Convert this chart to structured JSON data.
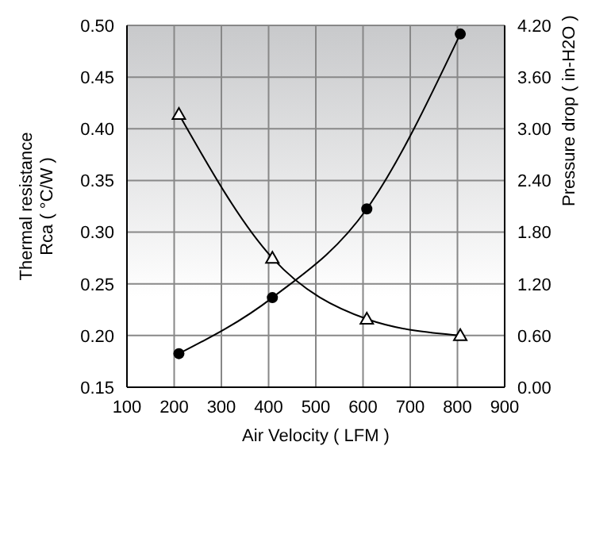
{
  "chart_data": {
    "type": "line",
    "xlabel": "Air Velocity ( LFM )",
    "ylabel": "Thermal resistance\nRca ( °C/W )",
    "y2label": "Pressure drop ( in-H2O )",
    "xlim": [
      100,
      900
    ],
    "xticks": [
      100,
      200,
      300,
      400,
      500,
      600,
      700,
      800,
      900
    ],
    "ylim": [
      0.15,
      0.5
    ],
    "yticks": [
      {
        "value": 0.15,
        "label": "0.15"
      },
      {
        "value": 0.2,
        "label": "0.20"
      },
      {
        "value": 0.25,
        "label": "0.25"
      },
      {
        "value": 0.3,
        "label": "0.30"
      },
      {
        "value": 0.35,
        "label": "0.35"
      },
      {
        "value": 0.4,
        "label": "0.40"
      },
      {
        "value": 0.45,
        "label": "0.45"
      },
      {
        "value": 0.5,
        "label": "0.50"
      }
    ],
    "y2lim": [
      0,
      4.2
    ],
    "y2ticks": [
      {
        "value": 0,
        "label": "0.00"
      },
      {
        "value": 0.6,
        "label": "0.60"
      },
      {
        "value": 1.2,
        "label": "1.20"
      },
      {
        "value": 1.8,
        "label": "1.80"
      },
      {
        "value": 2.4,
        "label": "2.40"
      },
      {
        "value": 3.0,
        "label": "3.00"
      },
      {
        "value": 3.6,
        "label": "3.60"
      },
      {
        "value": 4.2,
        "label": "4.20"
      }
    ],
    "grid": true,
    "legend": false,
    "series": [
      {
        "color": "#000000",
        "marker": "triangle",
        "x": [
          210,
          408,
          608,
          806
        ],
        "values": [
          0.414,
          0.275,
          0.216,
          0.2
        ]
      },
      {
        "color": "#000000",
        "marker": "circle",
        "axis": "y2",
        "x": [
          210,
          408,
          608,
          806
        ],
        "values": [
          0.39,
          1.04,
          2.07,
          4.1
        ]
      }
    ]
  }
}
